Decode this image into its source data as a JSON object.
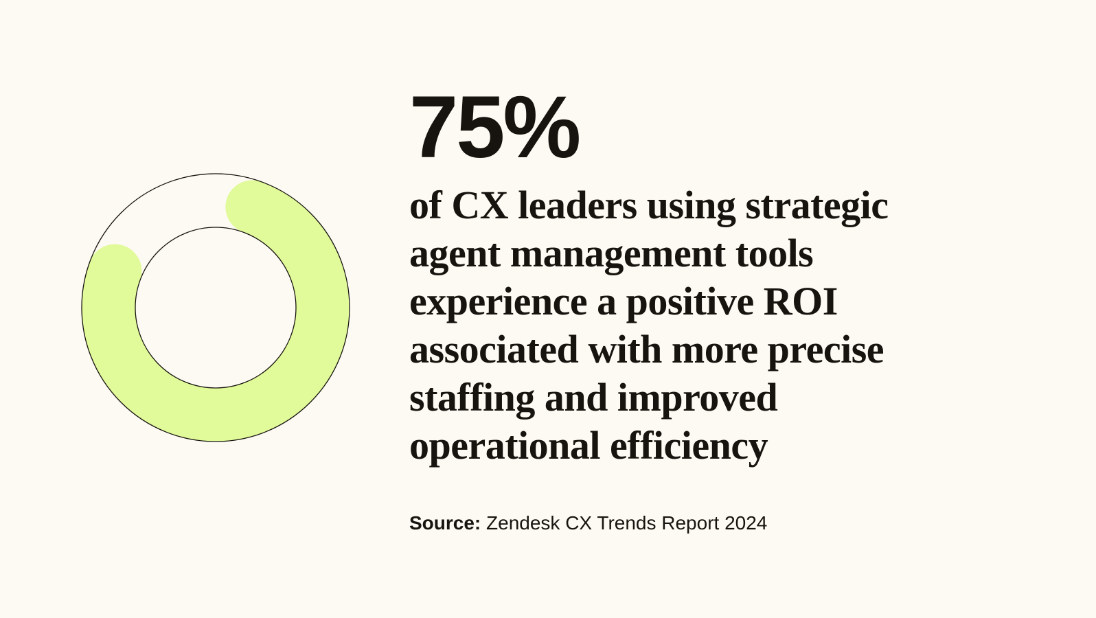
{
  "chart_data": {
    "type": "pie",
    "categories": [
      "75%",
      ""
    ],
    "values": [
      75,
      25
    ],
    "title": "75%",
    "colors": {
      "fill": "#e1fa9a",
      "empty": "#fdfaf3",
      "stroke": "#17140f",
      "background": "#fdfaf3"
    }
  },
  "stat": {
    "value": "75%",
    "description_lines": [
      "of CX leaders using strategic",
      "agent management tools",
      "experience a positive ROI",
      "associated with more precise",
      "staffing and improved",
      "operational efficiency"
    ]
  },
  "source": {
    "label": "Source:",
    "text": "Zendesk CX Trends Report 2024"
  }
}
